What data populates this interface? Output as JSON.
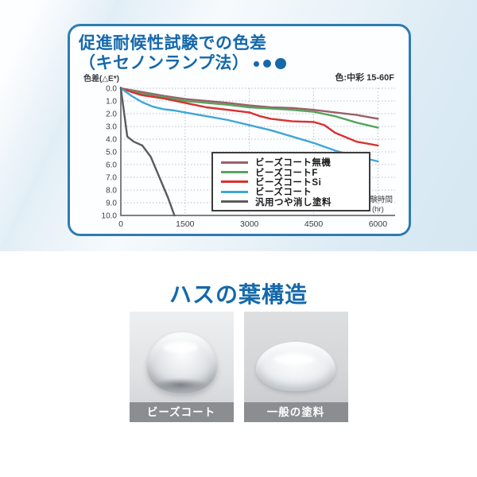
{
  "weathering_card": {
    "title_line1": "促進耐候性試験での色差",
    "title_line2": "（キセノンランプ法）",
    "color_annotation": "色:中彩 15-60F",
    "ylabel": "色差(△E*)",
    "xlabel_line1": "試験時間",
    "xlabel_line2": "(hr)"
  },
  "chart_data": {
    "type": "line",
    "title": "促進耐候性試験での色差（キセノンランプ法）",
    "ylabel": "色差(△E*)",
    "xlabel": "試験時間(hr)",
    "annotation": "色:中彩 15-60F",
    "xlim": [
      0,
      6400
    ],
    "ylim": [
      0,
      10
    ],
    "y_axis_inverted": true,
    "grid": "dotted",
    "legend_position": "inside-bottom-center",
    "xticks": [
      "0",
      "1500",
      "3000",
      "4500",
      "6000"
    ],
    "xtick_values": [
      0,
      1500,
      3000,
      4500,
      6000
    ],
    "yticks": [
      "0.0",
      "1.0",
      "2.0",
      "3.0",
      "4.0",
      "5.0",
      "6.0",
      "7.0",
      "8.0",
      "9.0",
      "10.0"
    ],
    "ytick_values": [
      0,
      1,
      2,
      3,
      4,
      5,
      6,
      7,
      8,
      9,
      10
    ],
    "series": [
      {
        "name": "ビーズコート無機",
        "color": "#9c5f68",
        "x": [
          0,
          500,
          1000,
          1500,
          2000,
          2500,
          3000,
          3500,
          4000,
          4500,
          5000,
          5500,
          6000
        ],
        "y": [
          0,
          0.3,
          0.6,
          0.85,
          1.0,
          1.15,
          1.35,
          1.5,
          1.55,
          1.7,
          1.9,
          2.1,
          2.4
        ]
      },
      {
        "name": "ビーズコートF",
        "color": "#55a55e",
        "x": [
          0,
          500,
          1000,
          1500,
          2000,
          2500,
          3000,
          3500,
          4000,
          4500,
          5000,
          5500,
          6000
        ],
        "y": [
          0,
          0.45,
          0.7,
          1.0,
          1.15,
          1.3,
          1.5,
          1.6,
          1.7,
          1.85,
          2.2,
          2.7,
          3.1
        ]
      },
      {
        "name": "ビーズコートSi",
        "color": "#d93030",
        "x": [
          0,
          250,
          500,
          1000,
          1500,
          2000,
          2500,
          3000,
          3250,
          3500,
          4000,
          4500,
          4750,
          5000,
          5500,
          6000
        ],
        "y": [
          0,
          0.3,
          0.55,
          0.8,
          1.15,
          1.5,
          1.7,
          1.9,
          2.2,
          2.4,
          2.6,
          2.65,
          2.9,
          3.5,
          4.2,
          4.5
        ]
      },
      {
        "name": "ビーズコート",
        "color": "#3fa6d9",
        "x": [
          0,
          250,
          500,
          750,
          1000,
          1250,
          1500,
          2000,
          2500,
          3000,
          3500,
          4000,
          4500,
          5000,
          5500,
          6000
        ],
        "y": [
          0,
          0.6,
          1.1,
          1.45,
          1.65,
          1.75,
          1.9,
          2.2,
          2.5,
          2.9,
          3.3,
          3.8,
          4.3,
          4.9,
          5.35,
          5.75
        ]
      },
      {
        "name": "汎用つや消し塗料",
        "color": "#595c5e",
        "x": [
          0,
          150,
          300,
          500,
          700,
          900,
          1100,
          1250
        ],
        "y": [
          0,
          3.8,
          4.2,
          4.5,
          5.4,
          7.0,
          8.6,
          10.0
        ]
      }
    ]
  },
  "lotus_section": {
    "title": "ハスの葉構造",
    "photos": [
      {
        "caption": "ビーズコート"
      },
      {
        "caption": "一般の塗料"
      }
    ]
  }
}
